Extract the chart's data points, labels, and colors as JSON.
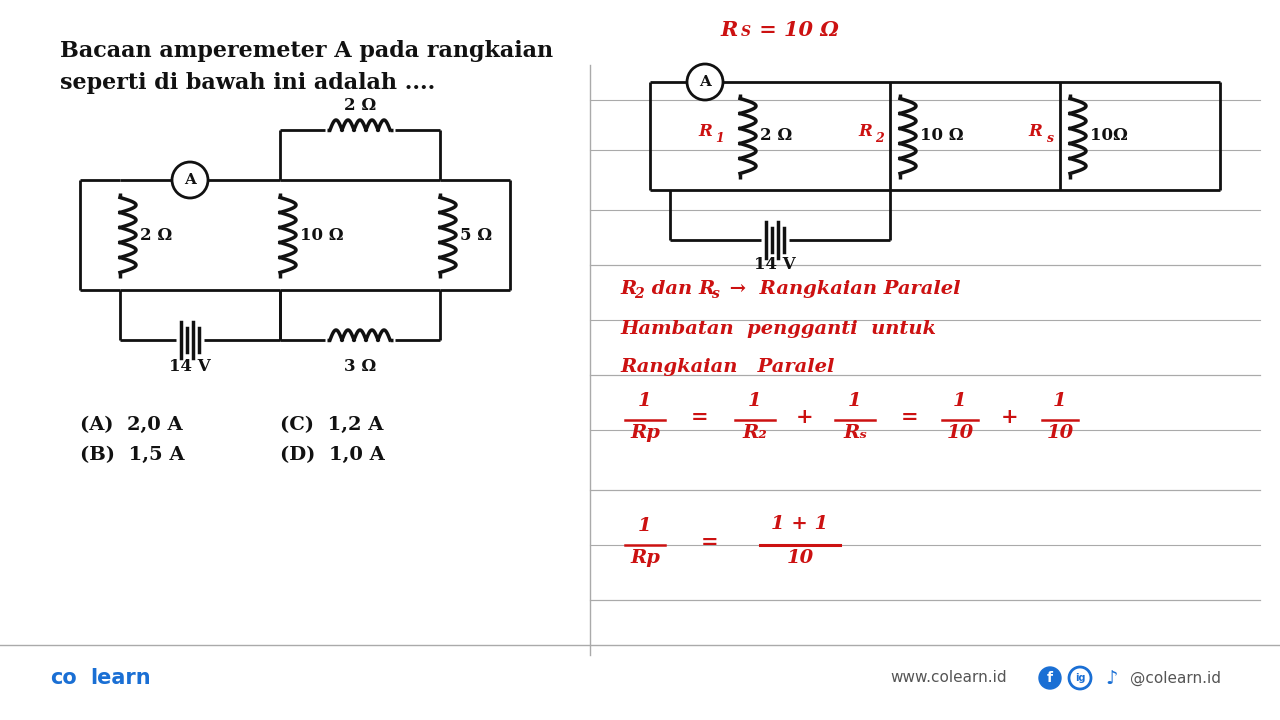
{
  "bg_color": "#ffffff",
  "title_line1": "Bacaan amperemeter A pada rangkaian",
  "title_line2": "seperti di bawah ini adalah ....",
  "choices": [
    {
      "label": "(A)  2,0 A",
      "col": 0
    },
    {
      "label": "(B)  1,5 A",
      "col": 0
    },
    {
      "label": "(C)  1,2 A",
      "col": 1
    },
    {
      "label": "(D)  1,0 A",
      "col": 1
    }
  ],
  "red": "#cc1111",
  "black": "#111111",
  "gray": "#aaaaaa",
  "blue": "#1a6fd4",
  "footer_web": "www.colearn.id",
  "footer_social": "@colearn.id"
}
